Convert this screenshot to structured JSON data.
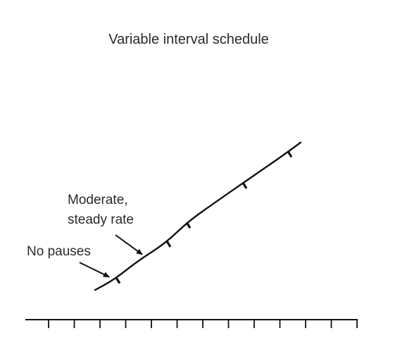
{
  "chart_data": {
    "type": "line",
    "title": "Variable interval schedule",
    "xlabel": "",
    "ylabel": "",
    "x": [
      0,
      0.7,
      1.5,
      2.5,
      3.3,
      4.2,
      5.3,
      6.6,
      7.3
    ],
    "series": [
      {
        "values": [
          0,
          0.6,
          1.6,
          2.6,
          3.8,
          4.8,
          6.0,
          7.4,
          8.2
        ],
        "reinforcement_points": [
          0.8,
          2.6,
          3.3,
          5.3,
          6.9
        ]
      }
    ],
    "xlim": [
      0,
      10
    ],
    "ylim": [
      0,
      12
    ],
    "x_tick_count": 13,
    "grid": false,
    "annotations": [
      {
        "lines": [
          "Moderate,",
          "steady rate"
        ],
        "points_to_x": 1.8
      },
      {
        "lines": [
          "No pauses"
        ],
        "points_to_x": 0.3
      }
    ],
    "colors": {
      "line": "#111111",
      "text": "#2a2a2a"
    }
  }
}
